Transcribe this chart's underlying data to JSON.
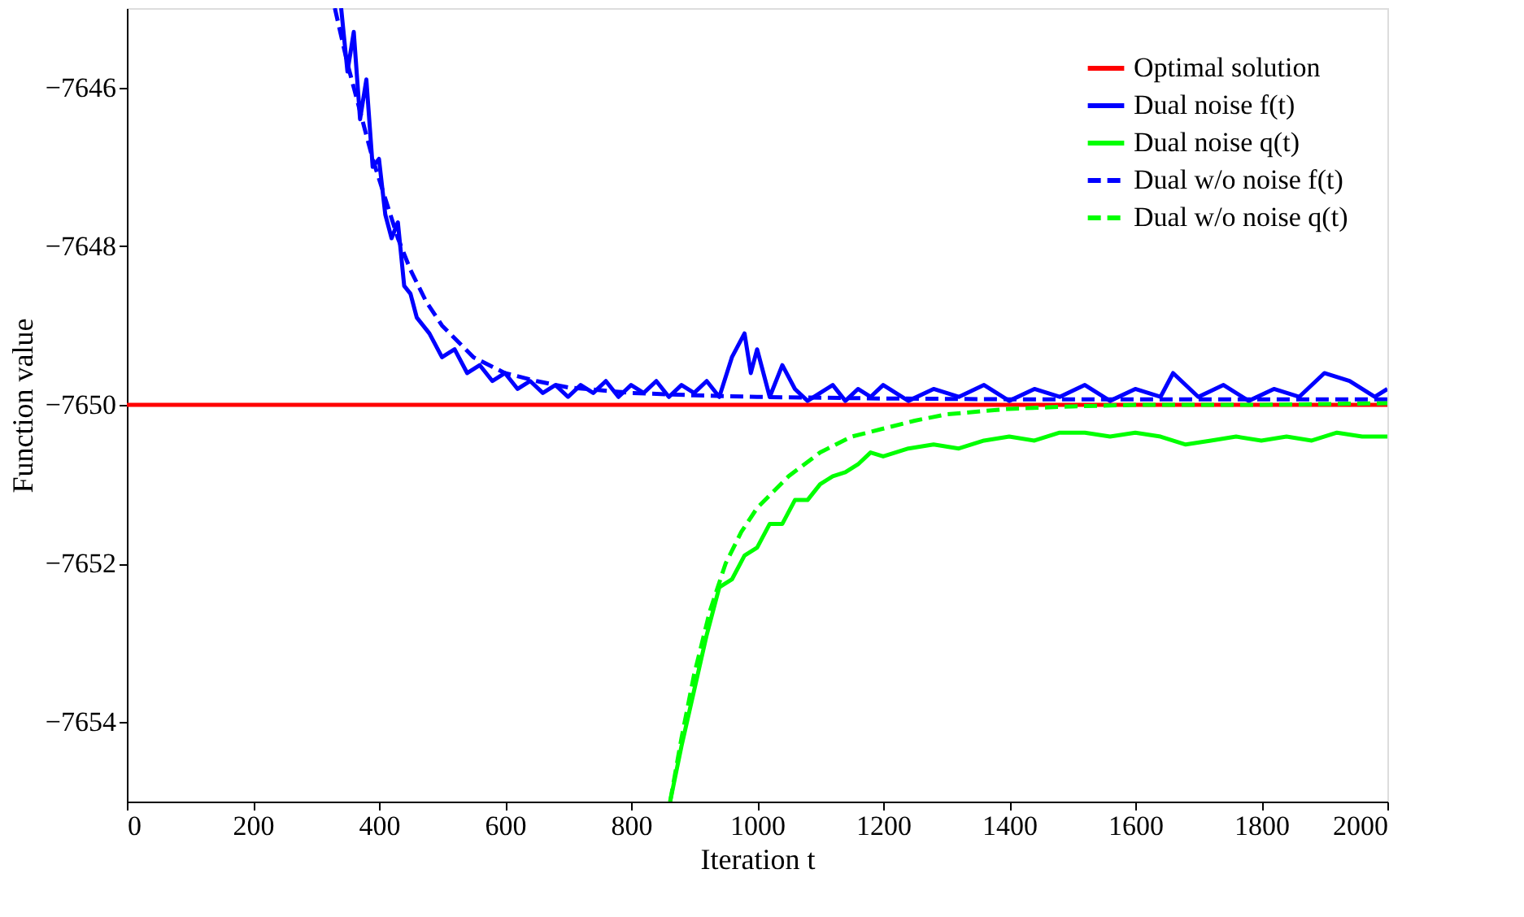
{
  "chart_data": {
    "type": "line",
    "xlabel": "Iteration t",
    "ylabel": "Function value",
    "xlim": [
      0,
      2000
    ],
    "ylim": [
      -7655,
      -7645
    ],
    "xticks": [
      0,
      200,
      400,
      600,
      800,
      1000,
      1200,
      1400,
      1600,
      1800,
      2000
    ],
    "yticks": [
      -7654,
      -7652,
      -7650,
      -7648,
      -7646
    ],
    "grid": false,
    "legend": "top right",
    "marker": "none",
    "series": [
      {
        "name": "Optimal solution",
        "color": "#ff0000",
        "line_style": "solid",
        "x": [
          0,
          2000
        ],
        "values": [
          -7650,
          -7650
        ]
      },
      {
        "name": "Dual noise f(t)",
        "color": "#0000ff",
        "line_style": "solid",
        "x": [
          340,
          350,
          360,
          370,
          380,
          390,
          400,
          410,
          420,
          430,
          440,
          450,
          460,
          480,
          500,
          520,
          540,
          560,
          580,
          600,
          620,
          640,
          660,
          680,
          700,
          720,
          740,
          760,
          780,
          800,
          820,
          840,
          860,
          880,
          900,
          920,
          940,
          960,
          980,
          990,
          1000,
          1020,
          1040,
          1060,
          1080,
          1100,
          1120,
          1140,
          1160,
          1180,
          1200,
          1240,
          1280,
          1320,
          1360,
          1400,
          1440,
          1480,
          1520,
          1560,
          1600,
          1640,
          1660,
          1700,
          1740,
          1780,
          1820,
          1860,
          1900,
          1940,
          1980,
          2000
        ],
        "values": [
          -7645.0,
          -7645.8,
          -7645.3,
          -7646.4,
          -7645.9,
          -7647.0,
          -7646.9,
          -7647.6,
          -7647.9,
          -7647.7,
          -7648.5,
          -7648.6,
          -7648.9,
          -7649.1,
          -7649.4,
          -7649.3,
          -7649.6,
          -7649.5,
          -7649.7,
          -7649.6,
          -7649.8,
          -7649.7,
          -7649.85,
          -7649.75,
          -7649.9,
          -7649.75,
          -7649.85,
          -7649.7,
          -7649.9,
          -7649.75,
          -7649.85,
          -7649.7,
          -7649.9,
          -7649.75,
          -7649.85,
          -7649.7,
          -7649.9,
          -7649.4,
          -7649.1,
          -7649.6,
          -7649.3,
          -7649.9,
          -7649.5,
          -7649.8,
          -7649.95,
          -7649.85,
          -7649.75,
          -7649.95,
          -7649.8,
          -7649.9,
          -7649.75,
          -7649.95,
          -7649.8,
          -7649.9,
          -7649.75,
          -7649.95,
          -7649.8,
          -7649.9,
          -7649.75,
          -7649.95,
          -7649.8,
          -7649.9,
          -7649.6,
          -7649.9,
          -7649.75,
          -7649.95,
          -7649.8,
          -7649.9,
          -7649.6,
          -7649.7,
          -7649.9,
          -7649.8
        ]
      },
      {
        "name": "Dual noise q(t)",
        "color": "#00ff00",
        "line_style": "solid",
        "x": [
          862,
          880,
          900,
          920,
          940,
          960,
          980,
          1000,
          1020,
          1040,
          1060,
          1080,
          1100,
          1120,
          1140,
          1160,
          1180,
          1200,
          1240,
          1280,
          1320,
          1360,
          1400,
          1440,
          1480,
          1520,
          1560,
          1600,
          1640,
          1680,
          1720,
          1760,
          1800,
          1840,
          1880,
          1920,
          1960,
          2000
        ],
        "values": [
          -7655,
          -7654.3,
          -7653.6,
          -7652.9,
          -7652.3,
          -7652.2,
          -7651.9,
          -7651.8,
          -7651.5,
          -7651.5,
          -7651.2,
          -7651.2,
          -7651.0,
          -7650.9,
          -7650.85,
          -7650.75,
          -7650.6,
          -7650.65,
          -7650.55,
          -7650.5,
          -7650.55,
          -7650.45,
          -7650.4,
          -7650.45,
          -7650.35,
          -7650.35,
          -7650.4,
          -7650.35,
          -7650.4,
          -7650.5,
          -7650.45,
          -7650.4,
          -7650.45,
          -7650.4,
          -7650.45,
          -7650.35,
          -7650.4,
          -7650.4
        ]
      },
      {
        "name": "Dual w/o noise f(t)",
        "color": "#0000ff",
        "line_style": "dashed",
        "x": [
          330,
          350,
          370,
          390,
          410,
          430,
          450,
          475,
          500,
          550,
          600,
          650,
          700,
          800,
          900,
          1000,
          1200,
          1400,
          1600,
          1800,
          2000
        ],
        "values": [
          -7645.0,
          -7645.7,
          -7646.3,
          -7646.9,
          -7647.4,
          -7647.9,
          -7648.3,
          -7648.7,
          -7649.0,
          -7649.4,
          -7649.6,
          -7649.7,
          -7649.78,
          -7649.85,
          -7649.88,
          -7649.9,
          -7649.92,
          -7649.93,
          -7649.93,
          -7649.93,
          -7649.93
        ]
      },
      {
        "name": "Dual w/o noise q(t)",
        "color": "#00ff00",
        "line_style": "dashed",
        "x": [
          862,
          880,
          900,
          925,
          950,
          975,
          1000,
          1050,
          1100,
          1150,
          1200,
          1250,
          1300,
          1400,
          1500,
          1600,
          1800,
          2000
        ],
        "values": [
          -7655,
          -7654.2,
          -7653.4,
          -7652.6,
          -7652.0,
          -7651.6,
          -7651.3,
          -7650.9,
          -7650.6,
          -7650.4,
          -7650.3,
          -7650.2,
          -7650.12,
          -7650.05,
          -7650.02,
          -7650.0,
          -7650.0,
          -7649.98
        ]
      }
    ]
  }
}
